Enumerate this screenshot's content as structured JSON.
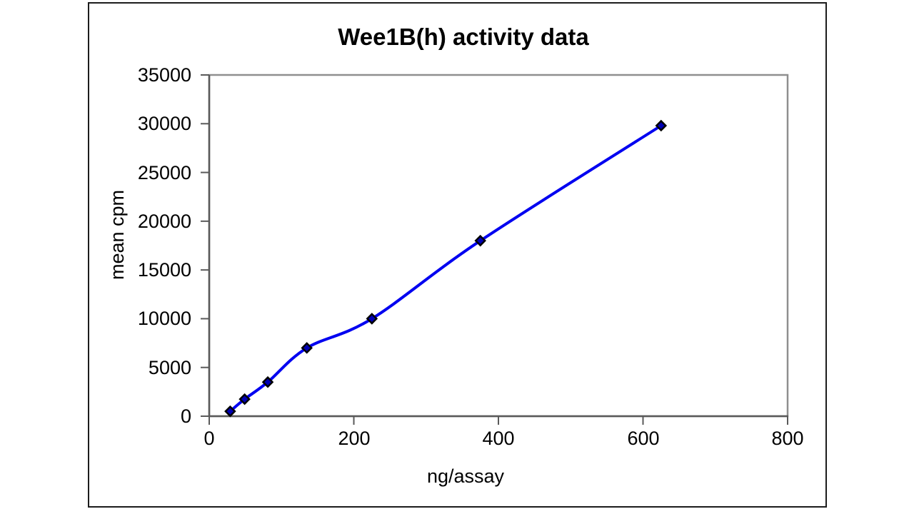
{
  "chart_data": {
    "type": "line",
    "title": "Wee1B(h) activity data",
    "xlabel": "ng/assay",
    "ylabel": "mean cpm",
    "x": [
      29,
      49,
      81,
      135,
      225,
      375,
      625
    ],
    "y": [
      500,
      1750,
      3500,
      7000,
      10000,
      18000,
      29800
    ],
    "xlim": [
      0,
      800
    ],
    "ylim": [
      0,
      35000
    ],
    "xticks": [
      0,
      200,
      400,
      600,
      800
    ],
    "yticks": [
      0,
      5000,
      10000,
      15000,
      20000,
      25000,
      30000,
      35000
    ],
    "grid": false,
    "legend": "none",
    "smoothed_line": true,
    "marker": "diamond",
    "colors": {
      "line": "#0000f0",
      "marker_fill": "#0000b4",
      "marker_stroke": "#000000",
      "plot_border": "#8f8f8f",
      "axis": "#5a5a5a",
      "chart_border": "#1c1c1c",
      "text": "#000000",
      "background": "#ffffff"
    }
  }
}
